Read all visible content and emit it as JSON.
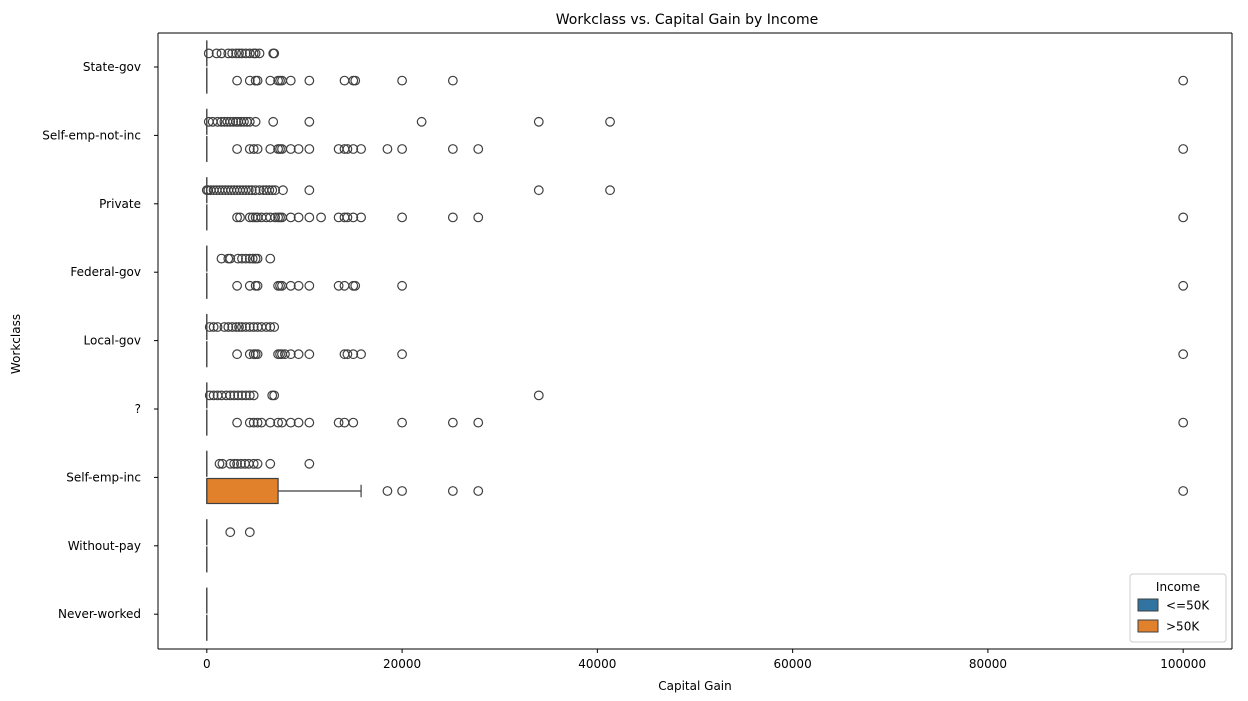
{
  "chart_data": {
    "type": "boxplot",
    "orientation": "horizontal",
    "title": "Workclass vs. Capital Gain by Income",
    "xlabel": "Capital Gain",
    "ylabel": "Workclass",
    "xlim": [
      -5000,
      105000
    ],
    "xticks": [
      0,
      20000,
      40000,
      60000,
      80000,
      100000
    ],
    "grid": false,
    "legend": {
      "title": "Income",
      "placement": "bottom-right",
      "entries": [
        {
          "label": "<=50K",
          "color": "#3274a1"
        },
        {
          "label": ">50K",
          "color": "#e1812c"
        }
      ]
    },
    "categories": [
      "State-gov",
      "Self-emp-not-inc",
      "Private",
      "Federal-gov",
      "Local-gov",
      "?",
      "Self-emp-inc",
      "Without-pay",
      "Never-worked"
    ],
    "series": [
      {
        "name": "<=50K",
        "color": "#3274a1",
        "boxes": [
          {
            "category": "State-gov",
            "q1": 0,
            "median": 0,
            "q3": 0,
            "whisker_low": 0,
            "whisker_high": 0,
            "outliers": [
              200,
              1000,
              1500,
              2200,
              2600,
              3000,
              3300,
              3600,
              4000,
              4400,
              4800,
              5000,
              5400,
              6800,
              6900
            ]
          },
          {
            "category": "Self-emp-not-inc",
            "q1": 0,
            "median": 0,
            "q3": 0,
            "whisker_low": 0,
            "whisker_high": 0,
            "outliers": [
              200,
              600,
              1100,
              1500,
              1800,
              2100,
              2400,
              2700,
              3000,
              3200,
              3500,
              3800,
              4100,
              4400,
              5000,
              6800,
              10500,
              22000,
              34000,
              41300
            ]
          },
          {
            "category": "Private",
            "q1": 0,
            "median": 0,
            "q3": 0,
            "whisker_low": 0,
            "whisker_high": 0,
            "outliers": [
              0,
              150,
              400,
              700,
              1000,
              1300,
              1600,
              1900,
              2200,
              2500,
              2800,
              3100,
              3400,
              3700,
              4000,
              4300,
              4600,
              5000,
              5400,
              5800,
              6100,
              6400,
              6700,
              7000,
              7800,
              10500,
              34000,
              41300
            ]
          },
          {
            "category": "Federal-gov",
            "q1": 0,
            "median": 0,
            "q3": 0,
            "whisker_low": 0,
            "whisker_high": 0,
            "outliers": [
              1500,
              2200,
              2400,
              3200,
              3600,
              4000,
              4400,
              4700,
              5000,
              5200,
              6500
            ]
          },
          {
            "category": "Local-gov",
            "q1": 0,
            "median": 0,
            "q3": 0,
            "whisker_low": 0,
            "whisker_high": 0,
            "outliers": [
              300,
              700,
              1100,
              1800,
              2200,
              2600,
              3000,
              3300,
              3600,
              4000,
              4400,
              4800,
              5200,
              5600,
              6100,
              6500,
              6900
            ]
          },
          {
            "category": "?",
            "q1": 0,
            "median": 0,
            "q3": 0,
            "whisker_low": 0,
            "whisker_high": 0,
            "outliers": [
              300,
              700,
              1100,
              1500,
              2000,
              2400,
              2800,
              3200,
              3600,
              4000,
              4400,
              4800,
              6700,
              6900,
              34000
            ]
          },
          {
            "category": "Self-emp-inc",
            "q1": 0,
            "median": 0,
            "q3": 0,
            "whisker_low": 0,
            "whisker_high": 0,
            "outliers": [
              1300,
              1600,
              2400,
              2800,
              3100,
              3500,
              3900,
              4300,
              4800,
              5200,
              6500,
              10500
            ]
          },
          {
            "category": "Without-pay",
            "q1": 0,
            "median": 0,
            "q3": 0,
            "whisker_low": 0,
            "whisker_high": 0,
            "outliers": [
              2400,
              4400
            ]
          },
          {
            "category": "Never-worked",
            "q1": 0,
            "median": 0,
            "q3": 0,
            "whisker_low": 0,
            "whisker_high": 0,
            "outliers": []
          }
        ]
      },
      {
        "name": ">50K",
        "color": "#e1812c",
        "boxes": [
          {
            "category": "State-gov",
            "q1": 0,
            "median": 0,
            "q3": 0,
            "whisker_low": 0,
            "whisker_high": 0,
            "outliers": [
              3100,
              4400,
              5000,
              5200,
              6500,
              7300,
              7500,
              7700,
              8600,
              10500,
              14100,
              15000,
              15200,
              20000,
              25200,
              100000
            ]
          },
          {
            "category": "Self-emp-not-inc",
            "q1": 0,
            "median": 0,
            "q3": 0,
            "whisker_low": 0,
            "whisker_high": 0,
            "outliers": [
              3100,
              4400,
              4800,
              5200,
              6500,
              7300,
              7500,
              7700,
              8600,
              9400,
              10500,
              13500,
              14100,
              14400,
              15000,
              15800,
              18500,
              20000,
              25200,
              27800,
              100000
            ]
          },
          {
            "category": "Private",
            "q1": 0,
            "median": 0,
            "q3": 0,
            "whisker_low": 0,
            "whisker_high": 0,
            "outliers": [
              3100,
              3400,
              4400,
              4700,
              5000,
              5200,
              5600,
              6100,
              6500,
              7000,
              7300,
              7500,
              7700,
              8600,
              9400,
              10500,
              11700,
              13500,
              14100,
              14400,
              15000,
              15800,
              20000,
              25200,
              27800,
              100000
            ]
          },
          {
            "category": "Federal-gov",
            "q1": 0,
            "median": 0,
            "q3": 0,
            "whisker_low": 0,
            "whisker_high": 0,
            "outliers": [
              3100,
              4400,
              5000,
              5200,
              7300,
              7500,
              7700,
              8600,
              9400,
              10500,
              13500,
              14100,
              15000,
              15200,
              20000,
              100000
            ]
          },
          {
            "category": "Local-gov",
            "q1": 0,
            "median": 0,
            "q3": 0,
            "whisker_low": 0,
            "whisker_high": 0,
            "outliers": [
              3100,
              4400,
              4800,
              5000,
              5200,
              7300,
              7500,
              7700,
              8000,
              8600,
              9400,
              10500,
              14100,
              14400,
              15000,
              15800,
              20000,
              100000
            ]
          },
          {
            "category": "?",
            "q1": 0,
            "median": 0,
            "q3": 0,
            "whisker_low": 0,
            "whisker_high": 0,
            "outliers": [
              3100,
              4400,
              4800,
              5200,
              5600,
              6500,
              7300,
              7700,
              8600,
              9400,
              10500,
              13500,
              14100,
              15000,
              20000,
              25200,
              27800,
              100000
            ]
          },
          {
            "category": "Self-emp-inc",
            "q1": 0,
            "median": 0,
            "q3": 7300,
            "whisker_low": 0,
            "whisker_high": 15800,
            "outliers": [
              18500,
              20000,
              25200,
              27800,
              100000
            ]
          },
          {
            "category": "Without-pay",
            "q1": 0,
            "median": 0,
            "q3": 0,
            "whisker_low": 0,
            "whisker_high": 0,
            "outliers": []
          },
          {
            "category": "Never-worked",
            "q1": 0,
            "median": 0,
            "q3": 0,
            "whisker_low": 0,
            "whisker_high": 0,
            "outliers": []
          }
        ]
      }
    ]
  }
}
